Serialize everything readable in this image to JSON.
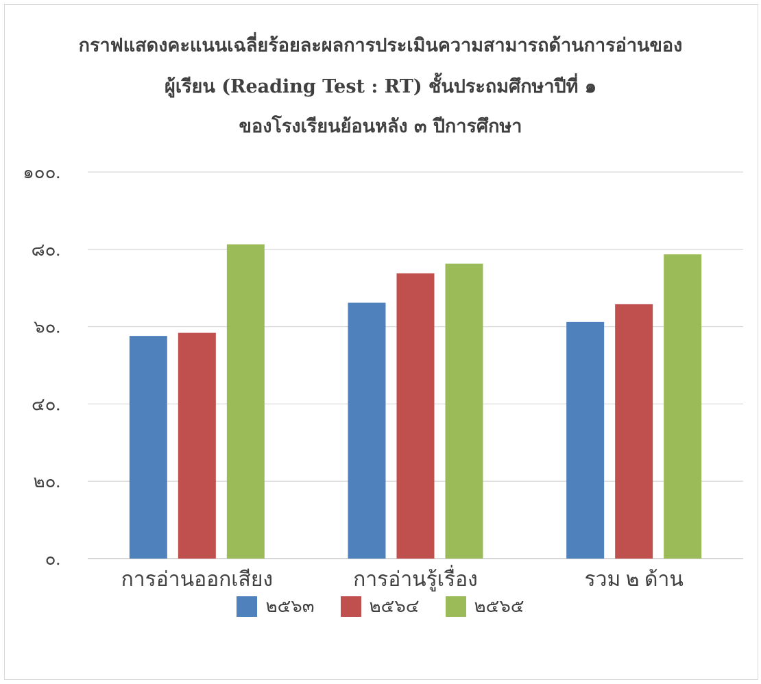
{
  "chart_data": {
    "type": "bar",
    "title_lines": [
      "กราฟแสดงคะแนนเฉลี่ยร้อยละผลการประเมินความสามารถด้านการอ่านของ",
      "ผู้เรียน (Reading Test : RT) ชั้นประถมศึกษาปีที่ ๑",
      "ของโรงเรียนย้อนหลัง ๓ ปีการศึกษา"
    ],
    "categories": [
      "การอ่านออกเสียง",
      "การอ่านรู้เรื่อง",
      "รวม ๒ ด้าน"
    ],
    "series": [
      {
        "name": "๒๕๖๓",
        "color": "#4f81bd",
        "values": [
          57.6,
          66.2,
          61.2
        ]
      },
      {
        "name": "๒๕๖๔",
        "color": "#c0504d",
        "values": [
          58.4,
          73.8,
          65.8
        ]
      },
      {
        "name": "๒๕๖๕",
        "color": "#9bbb59",
        "values": [
          81.3,
          76.3,
          78.7
        ]
      }
    ],
    "yticks": [
      "๐.",
      "๒๐.",
      "๔๐.",
      "๖๐.",
      "๘๐.",
      "๑๐๐."
    ],
    "ylim": [
      0,
      100
    ],
    "grid": true,
    "legend_position": "bottom"
  }
}
